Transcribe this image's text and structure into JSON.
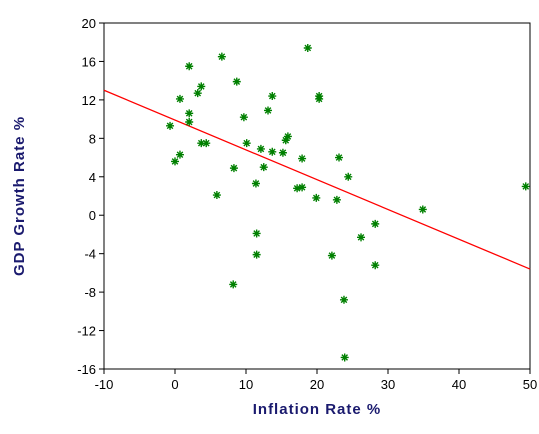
{
  "chart_data": {
    "type": "scatter",
    "x_label": "Inflation Rate %",
    "y_label": "GDP Growth Rate %",
    "xlim": [
      -10,
      50
    ],
    "xticks": [
      -10,
      0,
      10,
      20,
      30,
      40,
      50
    ],
    "ylim": [
      -16,
      20
    ],
    "yticks": [
      -16,
      -12,
      -8,
      -4,
      0,
      4,
      8,
      12,
      16,
      20
    ],
    "series": [
      {
        "color": "#008000",
        "x": [
          -0.7,
          0,
          0.7,
          0.7,
          2,
          2,
          2,
          3.2,
          3.7,
          3.7,
          4.4,
          5.9,
          6.6,
          8.3,
          8.2,
          8.7,
          9.7,
          10.1,
          11.4,
          11.5,
          11.5,
          12.1,
          12.5,
          13.1,
          13.7,
          13.7,
          15.2,
          15.6,
          15.9,
          17.2,
          17.9,
          17.9,
          18.7,
          19.9,
          20.3,
          20.3,
          22.1,
          22.8,
          23.1,
          23.8,
          23.9,
          24.4,
          26.2,
          28.2,
          28.2,
          34.9,
          49.4
        ],
        "values": [
          9.3,
          5.6,
          6.3,
          12.1,
          15.5,
          10.6,
          9.7,
          12.7,
          13.4,
          7.5,
          7.5,
          2.1,
          16.5,
          4.9,
          -7.2,
          13.9,
          10.2,
          7.5,
          3.3,
          -1.9,
          -4.1,
          6.9,
          5.0,
          10.9,
          12.4,
          6.6,
          6.5,
          7.8,
          8.2,
          2.8,
          2.9,
          5.9,
          17.4,
          1.8,
          12.4,
          12.1,
          -4.2,
          1.6,
          6.0,
          -8.8,
          -14.8,
          4.0,
          -2.3,
          -0.9,
          -5.2,
          0.6,
          3.0
        ]
      }
    ],
    "fit": {
      "color": "#ff0000",
      "x": [
        -10,
        50
      ],
      "values": [
        13,
        -5.6
      ]
    }
  }
}
